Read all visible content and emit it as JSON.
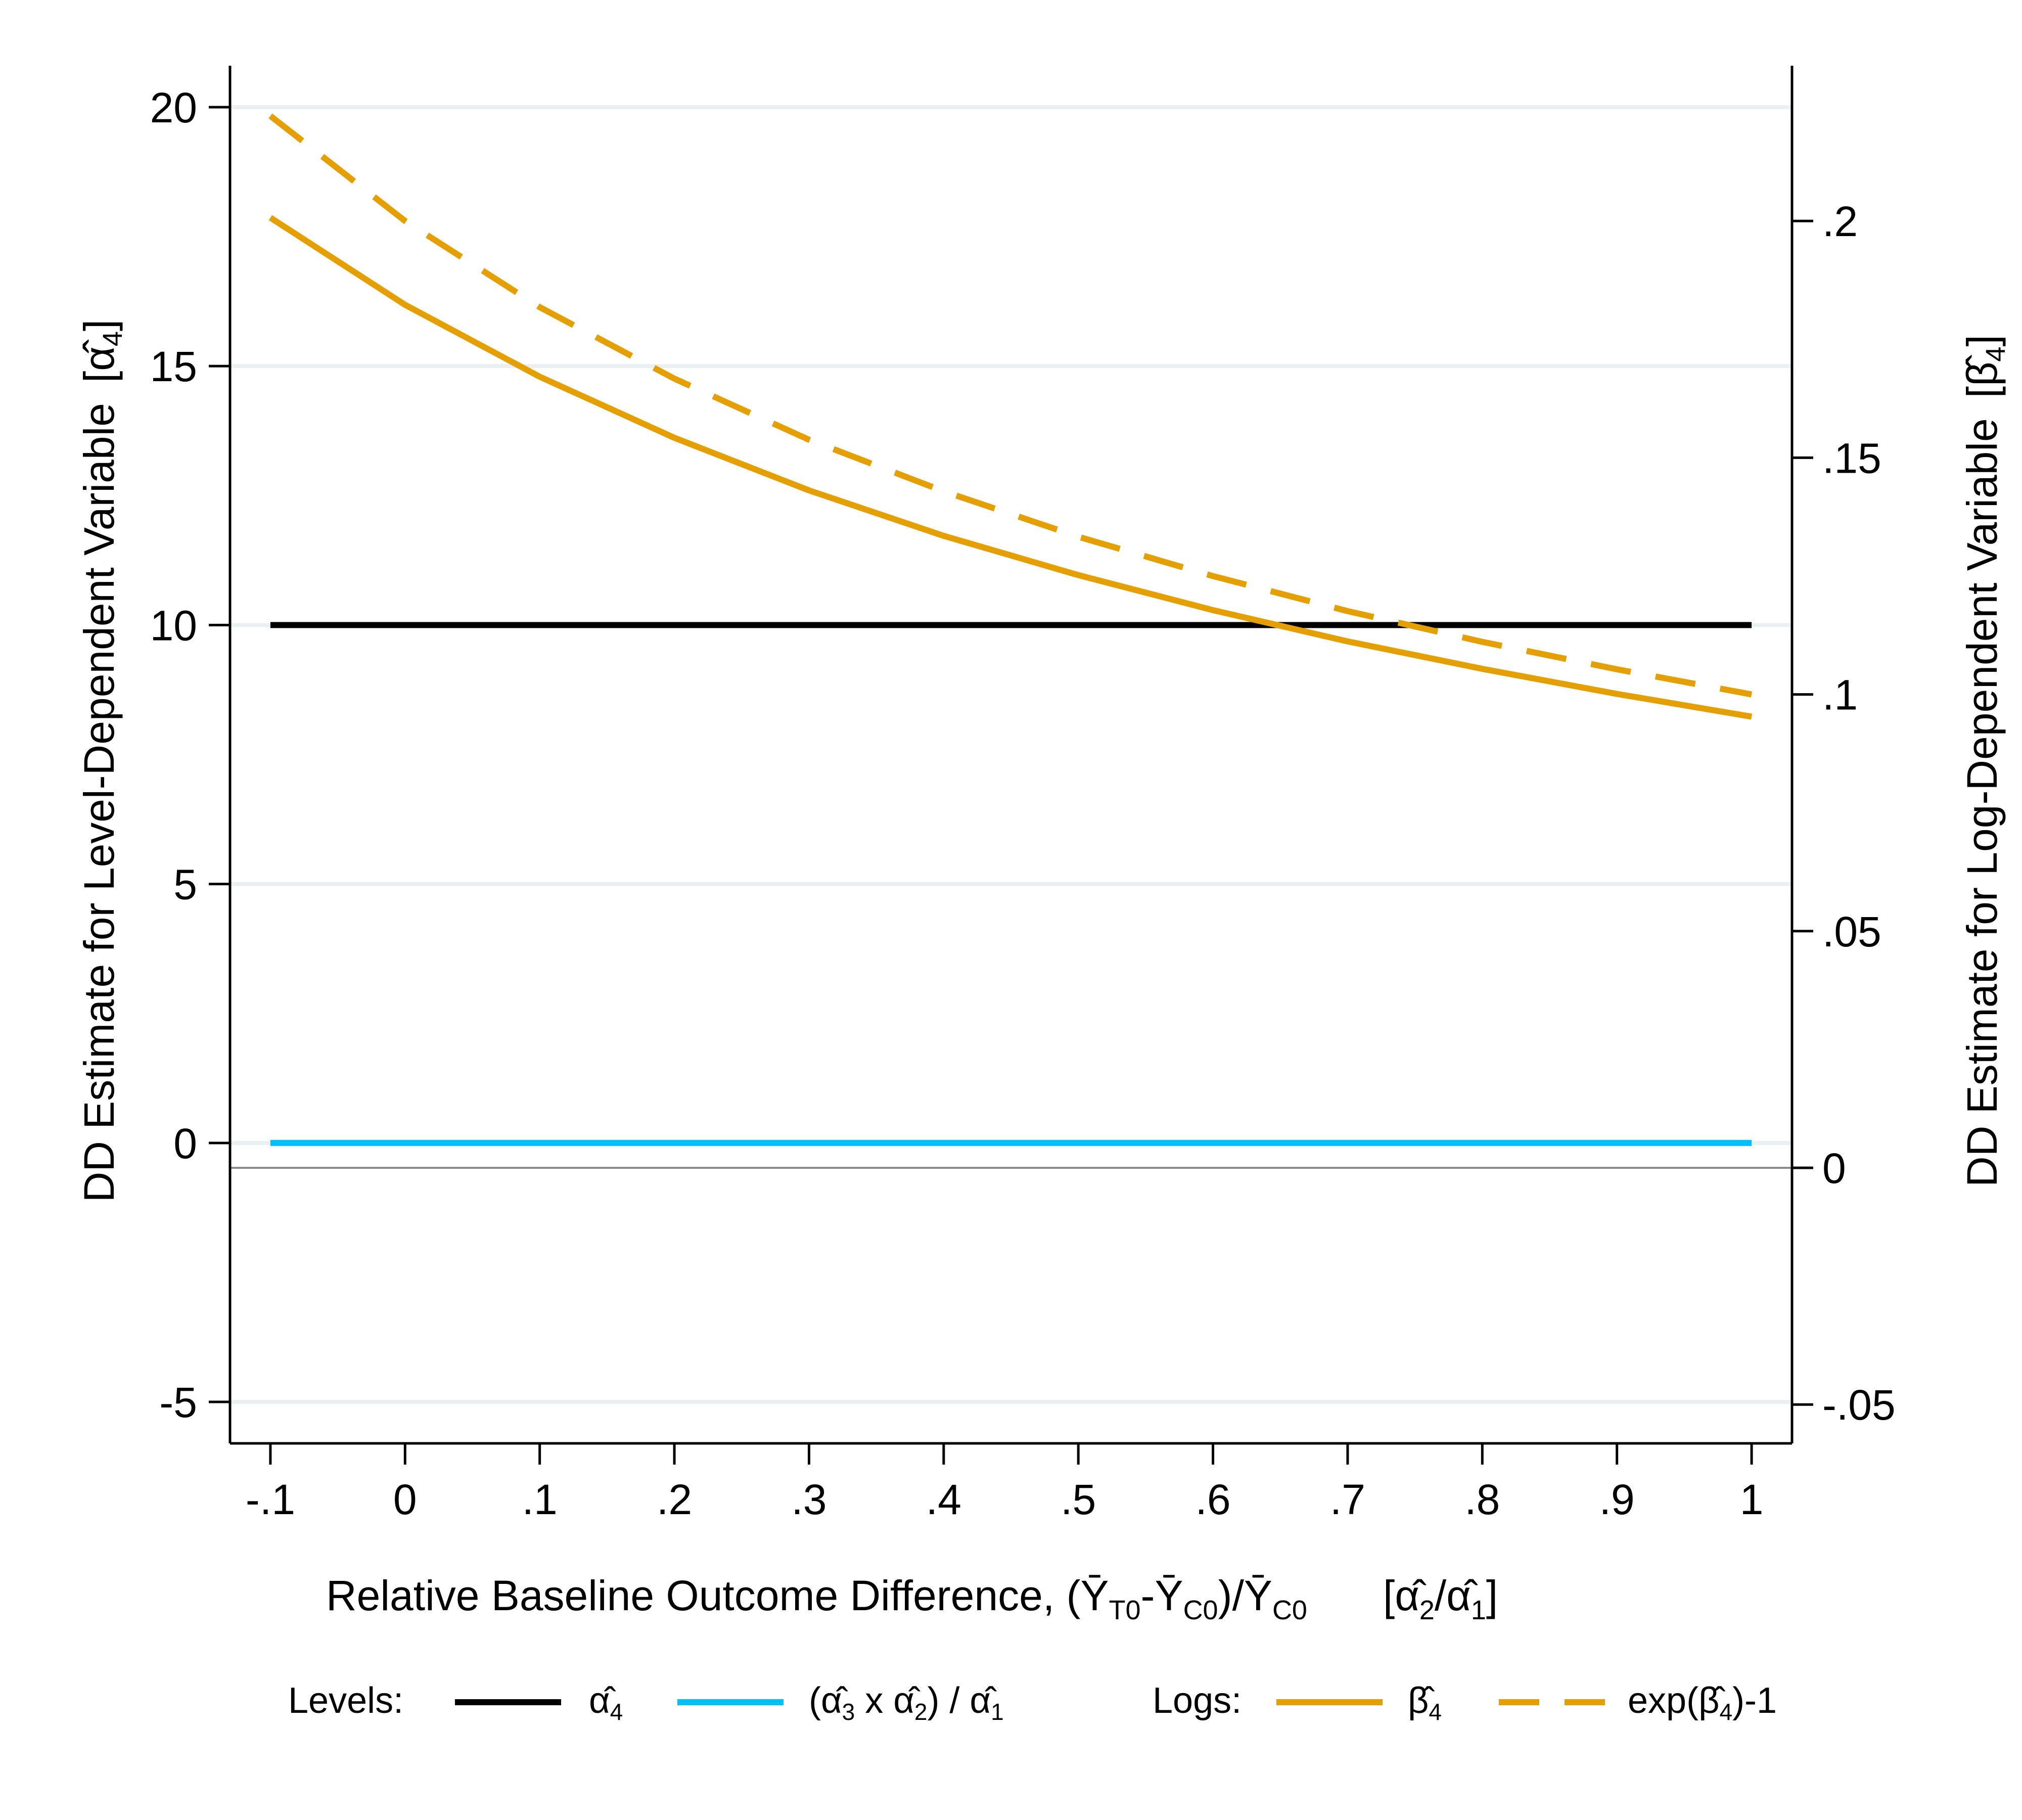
{
  "chart_data": {
    "type": "line",
    "title": "",
    "xlabel": {
      "lead": "Relative Baseline Outcome Difference, (",
      "ybar": "Ȳ",
      "sub_t0": "T0",
      "dash": "-",
      "sub_c0": "C0",
      "slash": ")/",
      "open": "[",
      "alpha_hat": "α̂",
      "sub_2": "2",
      "div": "/",
      "sub_1": "1",
      "close": "]"
    },
    "ylabel_left": {
      "text": "DD Estimate for Level-Dependent Variable",
      "open": "[",
      "symbol": "α̂",
      "sub": "4",
      "close": "]"
    },
    "ylabel_right": {
      "text": "DD Estimate for Log-Dependent Variable",
      "open": "[",
      "symbol": "β̂",
      "sub": "4",
      "close": "]"
    },
    "xlim": [
      -0.13,
      1.03
    ],
    "ylim_left": [
      -5.8,
      20.8
    ],
    "ylim_right": [
      -0.0582,
      0.2328
    ],
    "x_ticks": [
      {
        "value": -0.1,
        "label": "-.1"
      },
      {
        "value": 0,
        "label": "0"
      },
      {
        "value": 0.1,
        "label": ".1"
      },
      {
        "value": 0.2,
        "label": ".2"
      },
      {
        "value": 0.3,
        "label": ".3"
      },
      {
        "value": 0.4,
        "label": ".4"
      },
      {
        "value": 0.5,
        "label": ".5"
      },
      {
        "value": 0.6,
        "label": ".6"
      },
      {
        "value": 0.7,
        "label": ".7"
      },
      {
        "value": 0.8,
        "label": ".8"
      },
      {
        "value": 0.9,
        "label": ".9"
      },
      {
        "value": 1,
        "label": "1"
      }
    ],
    "y_left_ticks": [
      {
        "value": -5,
        "label": "-5"
      },
      {
        "value": 0,
        "label": "0"
      },
      {
        "value": 5,
        "label": "5"
      },
      {
        "value": 10,
        "label": "10"
      },
      {
        "value": 15,
        "label": "15"
      },
      {
        "value": 20,
        "label": "20"
      }
    ],
    "y_right_ticks": [
      {
        "value": -0.05,
        "label": "-.05"
      },
      {
        "value": 0,
        "label": "0"
      },
      {
        "value": 0.05,
        "label": ".05"
      },
      {
        "value": 0.1,
        "label": ".1"
      },
      {
        "value": 0.15,
        "label": ".15"
      },
      {
        "value": 0.2,
        "label": ".2"
      }
    ],
    "grid": true,
    "x": [
      -0.1,
      0,
      0.1,
      0.2,
      0.3,
      0.4,
      0.5,
      0.6,
      0.7,
      0.8,
      0.9,
      1.0
    ],
    "series": [
      {
        "name": "alpha4",
        "axis": "left",
        "style": "solid",
        "color": "#000000",
        "values": [
          10,
          10,
          10,
          10,
          10,
          10,
          10,
          10,
          10,
          10,
          10,
          10
        ]
      },
      {
        "name": "alpha3-alpha2-over-alpha1",
        "axis": "left",
        "style": "solid",
        "color": "#00BFFF",
        "values": [
          0,
          0,
          0,
          0,
          0,
          0,
          0,
          0,
          0,
          0,
          0,
          0
        ]
      },
      {
        "name": "beta4",
        "axis": "right",
        "style": "solid",
        "color": "#E69F00",
        "values": [
          0.2007,
          0.1823,
          0.1671,
          0.1542,
          0.1431,
          0.1335,
          0.1252,
          0.1178,
          0.1112,
          0.1054,
          0.1001,
          0.0953
        ]
      },
      {
        "name": "exp-beta4-minus-1",
        "axis": "right",
        "style": "dashed",
        "color": "#E69F00",
        "values": [
          0.2222,
          0.2,
          0.1818,
          0.1667,
          0.1538,
          0.1429,
          0.1333,
          0.125,
          0.1176,
          0.1111,
          0.1053,
          0.1
        ]
      }
    ],
    "legend": {
      "placement": "bottom",
      "levels_label": "Levels:",
      "logs_label": "Logs:",
      "items": [
        {
          "series": "alpha4",
          "parts": [
            {
              "t": "α̂"
            },
            {
              "t": "4",
              "sub": true
            }
          ]
        },
        {
          "series": "alpha3-alpha2-over-alpha1",
          "parts": [
            {
              "t": "(α̂"
            },
            {
              "t": "3",
              "sub": true
            },
            {
              "t": " x α̂"
            },
            {
              "t": "2",
              "sub": true
            },
            {
              "t": ") / α̂"
            },
            {
              "t": "1",
              "sub": true
            }
          ]
        },
        {
          "series": "beta4",
          "parts": [
            {
              "t": "β̂"
            },
            {
              "t": "4",
              "sub": true
            }
          ]
        },
        {
          "series": "exp-beta4-minus-1",
          "parts": [
            {
              "t": "exp(β̂"
            },
            {
              "t": "4",
              "sub": true
            },
            {
              "t": ")-1"
            }
          ]
        }
      ]
    },
    "colors": {
      "axis": "#000000",
      "grid": "#EAF0F2",
      "zero_line": "#8C8C8C"
    }
  }
}
